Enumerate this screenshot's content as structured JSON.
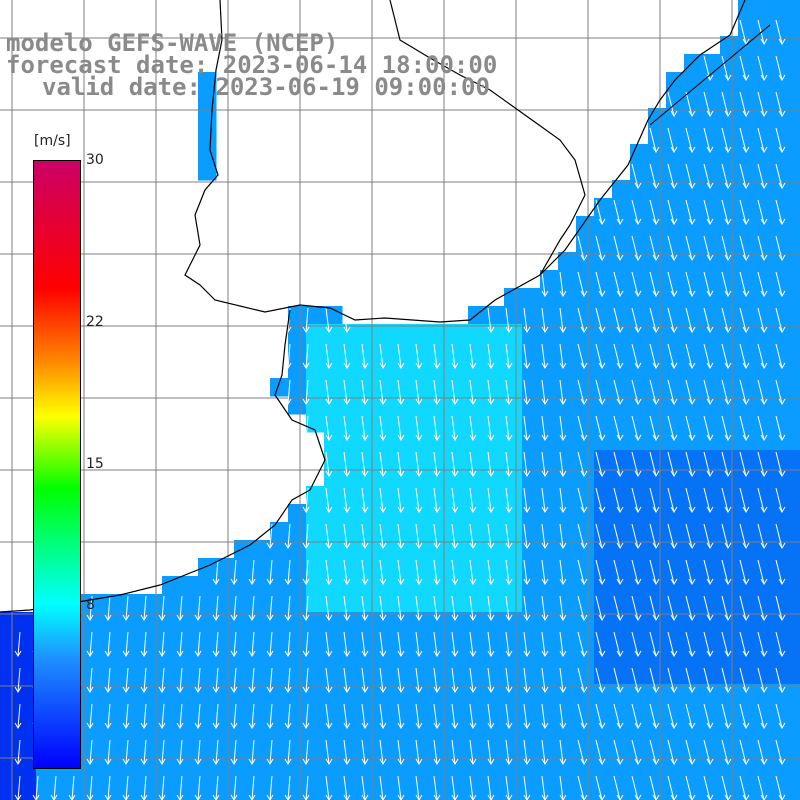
{
  "title": {
    "line1": "modelo GEFS-WAVE (NCEP)",
    "line2": "forecast date: 2023-06-14 18:00:00",
    "line3": "valid date: 2023-06-19 09:00:00"
  },
  "colorbar": {
    "unit": "[m/s]",
    "min": 0,
    "max": 30,
    "ticks": [
      {
        "value": 30,
        "label": "30"
      },
      {
        "value": 22,
        "label": "22"
      },
      {
        "value": 15,
        "label": "15"
      },
      {
        "value": 8,
        "label": "8"
      }
    ],
    "colors": [
      "#0000ff",
      "#1e90ff",
      "#00ffff",
      "#00ff00",
      "#ffff00",
      "#ff8800",
      "#ff0000",
      "#cc0066"
    ]
  },
  "map": {
    "land_color": "#ffffff",
    "coast_color": "#000000",
    "grid_color": "#7f7f7f",
    "arrow_color": "#ffffff",
    "wind_direction": "southward",
    "field_colors": {
      "weak": "#0030f0",
      "moderate": "#0a9cff",
      "strong": "#11d8ff"
    }
  }
}
